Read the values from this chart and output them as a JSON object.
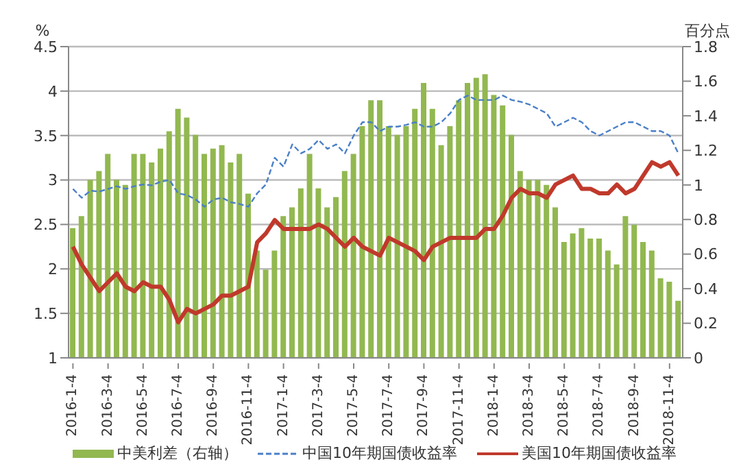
{
  "chart_data": {
    "type": "bar",
    "ylabel": "%",
    "y2label": "百分点",
    "categories": [
      "2016-1-4",
      null,
      null,
      null,
      "2016-3-4",
      null,
      null,
      null,
      "2016-5-4",
      null,
      null,
      null,
      "2016-7-4",
      null,
      null,
      null,
      "2016-9-4",
      null,
      null,
      null,
      "2016-11-4",
      null,
      null,
      null,
      "2017-1-4",
      null,
      null,
      null,
      "2017-3-4",
      null,
      null,
      null,
      "2017-5-4",
      null,
      null,
      null,
      "2017-7-4",
      null,
      null,
      null,
      "2017-9-4",
      null,
      null,
      null,
      "2017-11-4",
      null,
      null,
      null,
      "2018-1-4",
      null,
      null,
      null,
      "2018-3-4",
      null,
      null,
      null,
      "2018-5-4",
      null,
      null,
      null,
      "2018-7-4",
      null,
      null,
      null,
      "2018-9-4",
      null,
      null,
      null,
      "2018-11-4",
      null
    ],
    "series": [
      {
        "name": "中美利差（右轴）",
        "axis": "y2",
        "color": "#92b850",
        "values": [
          0.75,
          0.82,
          1.03,
          1.08,
          1.18,
          1.03,
          1.0,
          1.18,
          1.18,
          1.13,
          1.21,
          1.31,
          1.44,
          1.39,
          1.29,
          1.18,
          1.21,
          1.23,
          1.13,
          1.18,
          0.95,
          0.62,
          0.51,
          0.62,
          0.82,
          0.87,
          0.98,
          1.18,
          0.98,
          0.87,
          0.93,
          1.08,
          1.18,
          1.34,
          1.49,
          1.49,
          1.34,
          1.29,
          1.34,
          1.44,
          1.59,
          1.44,
          1.23,
          1.34,
          1.49,
          1.59,
          1.62,
          1.64,
          1.52,
          1.46,
          1.29,
          1.08,
          1.03,
          1.03,
          1.0,
          0.87,
          0.67,
          0.72,
          0.75,
          0.69,
          0.69,
          0.62,
          0.54,
          0.82,
          0.77,
          0.67,
          0.62,
          0.46,
          0.44,
          0.33
        ]
      },
      {
        "name": "中国10年期国债收益率",
        "type": "line",
        "line_style": "dashed",
        "color": "#4a7fc8",
        "values": [
          2.9,
          2.8,
          2.88,
          2.87,
          2.9,
          2.93,
          2.9,
          2.93,
          2.95,
          2.94,
          2.98,
          3.0,
          2.85,
          2.83,
          2.78,
          2.7,
          2.78,
          2.8,
          2.75,
          2.73,
          2.7,
          2.85,
          2.95,
          3.25,
          3.15,
          3.4,
          3.3,
          3.35,
          3.45,
          3.35,
          3.4,
          3.3,
          3.5,
          3.65,
          3.65,
          3.55,
          3.6,
          3.6,
          3.62,
          3.65,
          3.6,
          3.6,
          3.65,
          3.75,
          3.9,
          3.95,
          3.9,
          3.9,
          3.9,
          3.95,
          3.9,
          3.88,
          3.85,
          3.8,
          3.75,
          3.6,
          3.65,
          3.7,
          3.65,
          3.55,
          3.5,
          3.55,
          3.6,
          3.65,
          3.65,
          3.6,
          3.55,
          3.55,
          3.5,
          3.3
        ]
      },
      {
        "name": "美国10年期国债收益率",
        "type": "line",
        "line_style": "solid",
        "color": "#c0392b",
        "values": [
          2.25,
          2.05,
          1.9,
          1.75,
          1.85,
          1.95,
          1.8,
          1.75,
          1.85,
          1.8,
          1.8,
          1.65,
          1.4,
          1.55,
          1.5,
          1.55,
          1.6,
          1.7,
          1.7,
          1.75,
          1.8,
          2.3,
          2.4,
          2.55,
          2.45,
          2.45,
          2.45,
          2.45,
          2.5,
          2.45,
          2.35,
          2.25,
          2.35,
          2.25,
          2.2,
          2.15,
          2.35,
          2.3,
          2.25,
          2.2,
          2.1,
          2.25,
          2.3,
          2.35,
          2.35,
          2.35,
          2.35,
          2.45,
          2.45,
          2.6,
          2.8,
          2.9,
          2.85,
          2.85,
          2.8,
          2.95,
          3.0,
          3.05,
          2.9,
          2.9,
          2.85,
          2.85,
          2.95,
          2.85,
          2.9,
          3.05,
          3.2,
          3.15,
          3.2,
          3.05
        ]
      }
    ],
    "ylim": [
      1,
      4.5
    ],
    "yticks": [
      1,
      1.5,
      2,
      2.5,
      3,
      3.5,
      4,
      4.5
    ],
    "y2lim": [
      0,
      1.8
    ],
    "y2ticks": [
      0,
      0.2,
      0.4,
      0.6,
      0.8,
      1,
      1.2,
      1.4,
      1.6,
      1.8
    ],
    "grid": "y",
    "legend": "bottom"
  }
}
